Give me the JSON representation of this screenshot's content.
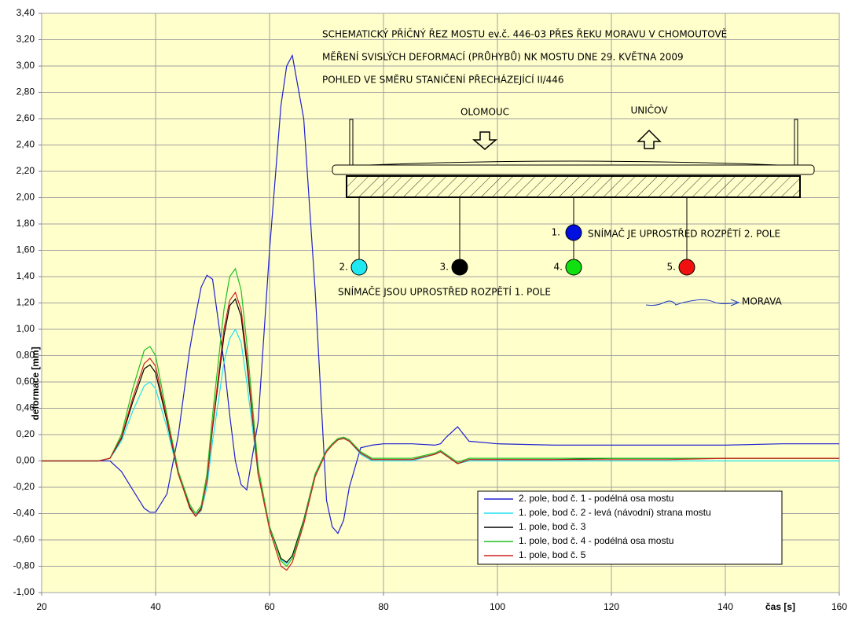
{
  "chart_data": {
    "type": "line",
    "xlabel": "čas [s]",
    "ylabel": "deformace [mm]",
    "x": [
      20,
      25,
      30,
      32,
      34,
      36,
      38,
      39,
      40,
      42,
      44,
      46,
      47,
      48,
      49,
      50,
      52,
      53,
      54,
      55,
      56,
      58,
      60,
      62,
      63,
      64,
      66,
      68,
      70,
      71,
      72,
      73,
      74,
      76,
      78,
      80,
      85,
      89,
      90,
      91,
      93,
      95,
      100,
      110,
      120,
      130,
      140,
      150,
      160
    ],
    "series": [
      {
        "name": "2. pole, bod č. 1 - podélná osa mostu",
        "color": "#2020d0",
        "values": [
          0,
          0,
          0,
          0,
          -0.08,
          -0.22,
          -0.36,
          -0.39,
          -0.39,
          -0.25,
          0.2,
          0.85,
          1.1,
          1.32,
          1.41,
          1.38,
          0.75,
          0.35,
          0.0,
          -0.18,
          -0.22,
          0.3,
          1.6,
          2.7,
          3.0,
          3.08,
          2.6,
          1.3,
          -0.3,
          -0.5,
          -0.55,
          -0.45,
          -0.2,
          0.1,
          0.12,
          0.13,
          0.13,
          0.12,
          0.13,
          0.18,
          0.26,
          0.15,
          0.13,
          0.12,
          0.12,
          0.12,
          0.12,
          0.13,
          0.13
        ]
      },
      {
        "name": "1. pole, bod č. 2 - levá (návodní) strana mostu",
        "color": "#20e0f0",
        "values": [
          0,
          0,
          0,
          0.02,
          0.15,
          0.38,
          0.57,
          0.6,
          0.55,
          0.25,
          -0.1,
          -0.35,
          -0.42,
          -0.38,
          -0.2,
          0.15,
          0.75,
          0.93,
          1.0,
          0.9,
          0.6,
          -0.1,
          -0.5,
          -0.75,
          -0.78,
          -0.72,
          -0.45,
          -0.1,
          0.08,
          0.13,
          0.16,
          0.17,
          0.15,
          0.05,
          0.0,
          0.0,
          0.0,
          0.05,
          0.07,
          0.04,
          -0.02,
          0.0,
          0.0,
          0.0,
          0.0,
          0.0,
          0.0,
          0.0,
          0.0
        ]
      },
      {
        "name": "1. pole, bod č. 3",
        "color": "#000000",
        "values": [
          0,
          0,
          0,
          0.02,
          0.17,
          0.45,
          0.7,
          0.73,
          0.67,
          0.3,
          -0.1,
          -0.35,
          -0.42,
          -0.36,
          -0.15,
          0.25,
          0.95,
          1.18,
          1.23,
          1.1,
          0.75,
          -0.1,
          -0.5,
          -0.74,
          -0.77,
          -0.72,
          -0.45,
          -0.1,
          0.08,
          0.13,
          0.17,
          0.18,
          0.16,
          0.06,
          0.01,
          0.01,
          0.01,
          0.05,
          0.07,
          0.04,
          -0.02,
          0.01,
          0.01,
          0.01,
          0.02,
          0.02,
          0.02,
          0.02,
          0.02
        ]
      },
      {
        "name": "1. pole, bod č. 4 - podélná osa mostu",
        "color": "#20c020",
        "values": [
          0,
          0,
          0,
          0.02,
          0.2,
          0.55,
          0.84,
          0.87,
          0.8,
          0.35,
          -0.08,
          -0.33,
          -0.4,
          -0.34,
          -0.1,
          0.35,
          1.15,
          1.4,
          1.46,
          1.3,
          0.9,
          -0.05,
          -0.5,
          -0.76,
          -0.8,
          -0.74,
          -0.46,
          -0.1,
          0.08,
          0.13,
          0.17,
          0.18,
          0.16,
          0.07,
          0.02,
          0.02,
          0.02,
          0.06,
          0.08,
          0.05,
          -0.01,
          0.02,
          0.02,
          0.02,
          0.02,
          0.02,
          0.02,
          0.02,
          0.02
        ]
      },
      {
        "name": "1. pole, bod č. 5",
        "color": "#d02020",
        "values": [
          0,
          0,
          0,
          0.02,
          0.18,
          0.48,
          0.74,
          0.78,
          0.72,
          0.32,
          -0.1,
          -0.36,
          -0.42,
          -0.37,
          -0.15,
          0.27,
          1.0,
          1.22,
          1.28,
          1.15,
          0.8,
          -0.1,
          -0.52,
          -0.8,
          -0.83,
          -0.77,
          -0.48,
          -0.12,
          0.07,
          0.12,
          0.16,
          0.17,
          0.15,
          0.06,
          0.01,
          0.01,
          0.01,
          0.05,
          0.07,
          0.04,
          -0.02,
          0.01,
          0.01,
          0.01,
          0.01,
          0.01,
          0.02,
          0.02,
          0.02
        ]
      }
    ],
    "xlim": [
      20,
      160
    ],
    "xticks": [
      20,
      40,
      60,
      80,
      100,
      120,
      140,
      160
    ],
    "ylim": [
      -1,
      3.4
    ],
    "yticks": [
      {
        "value": -1,
        "label": "-1,00"
      },
      {
        "value": -0.8,
        "label": "-0,80"
      },
      {
        "value": -0.6,
        "label": "-0,60"
      },
      {
        "value": -0.4,
        "label": "-0,40"
      },
      {
        "value": -0.2,
        "label": "-0,20"
      },
      {
        "value": 0,
        "label": "0,00"
      },
      {
        "value": 0.2,
        "label": "0,20"
      },
      {
        "value": 0.4,
        "label": "0,40"
      },
      {
        "value": 0.6,
        "label": "0,60"
      },
      {
        "value": 0.8,
        "label": "0,80"
      },
      {
        "value": 1,
        "label": "1,00"
      },
      {
        "value": 1.2,
        "label": "1,20"
      },
      {
        "value": 1.4,
        "label": "1,40"
      },
      {
        "value": 1.6,
        "label": "1,60"
      },
      {
        "value": 1.8,
        "label": "1,80"
      },
      {
        "value": 2,
        "label": "2,00"
      },
      {
        "value": 2.2,
        "label": "2,20"
      },
      {
        "value": 2.4,
        "label": "2,40"
      },
      {
        "value": 2.6,
        "label": "2,60"
      },
      {
        "value": 2.8,
        "label": "2,80"
      },
      {
        "value": 3,
        "label": "3,00"
      },
      {
        "value": 3.2,
        "label": "3,20"
      },
      {
        "value": 3.4,
        "label": "3,40"
      }
    ],
    "grid": true,
    "legend": "lower right",
    "annotations": [
      "SCHEMATICKÝ PŘÍČNÝ ŘEZ MOSTU ev.č. 446-03 PŘES ŘEKU MORAVU V CHOMOUTOVĚ",
      "MĚŘENÍ SVISLÝCH DEFORMACÍ (PRŮHYBŮ) NK MOSTU DNE 29. KVĚTNA 2009",
      "POHLED VE SMĚRU STANIČENÍ PŘECHÁZEJÍCÍ II/446",
      "OLOMOUC",
      "UNIČOV",
      "1.",
      "SNÍMAČ JE UPROSTŘED ROZPĚTÍ 2. POLE",
      "2.",
      "3.",
      "4.",
      "5.",
      "SNÍMAČE JSOU UPROSTŘED ROZPĚTÍ 1. POLE",
      "MORAVA"
    ]
  }
}
